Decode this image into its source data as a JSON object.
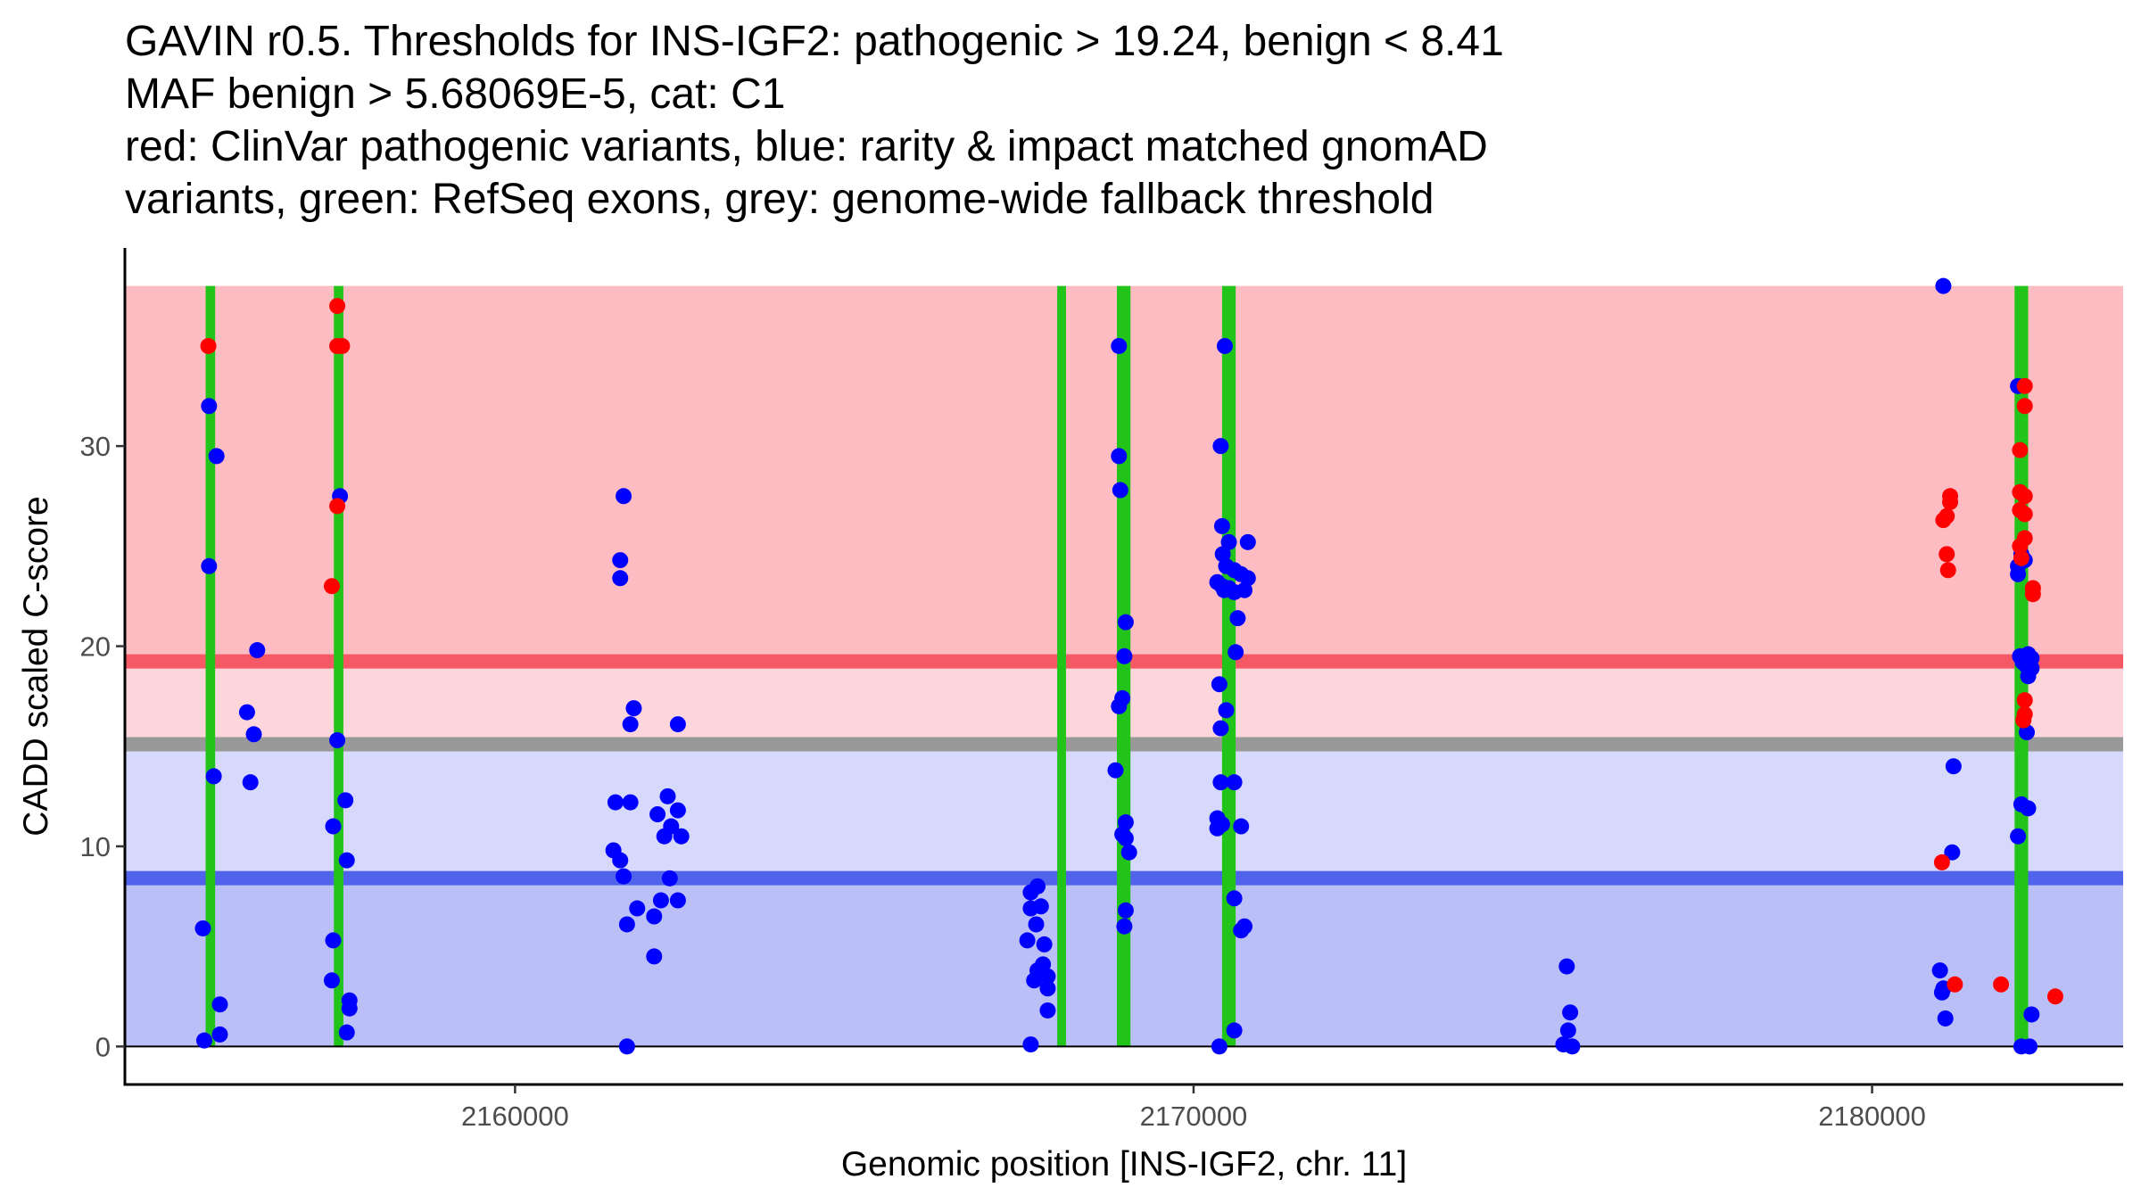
{
  "chart_data": {
    "type": "scatter",
    "title_lines": [
      "GAVIN r0.5. Thresholds for INS-IGF2: pathogenic > 19.24, benign < 8.41",
      "MAF benign > 5.68069E-5, cat: C1",
      "red: ClinVar pathogenic variants, blue: rarity & impact matched gnomAD",
      "variants, green: RefSeq exons, grey: genome-wide fallback threshold"
    ],
    "xlabel": "Genomic position [INS-IGF2, chr. 11]",
    "ylabel": "CADD scaled C-score",
    "xlim": [
      2154250,
      2183700
    ],
    "ylim": [
      -1.9,
      39.9
    ],
    "x_ticks": [
      2160000,
      2170000,
      2180000
    ],
    "x_tick_labels": [
      "2160000",
      "2170000",
      "2180000"
    ],
    "y_ticks": [
      0,
      10,
      20,
      30
    ],
    "y_tick_labels": [
      "0",
      "10",
      "20",
      "30"
    ],
    "colors": {
      "pathogenic_region": "#FDBCC2",
      "grey_zone_upper": "#FDD6DC",
      "grey_zone_lower": "#D6D9FB",
      "benign_region": "#BBBFF8",
      "pathogenic_threshold": "#F65966",
      "benign_threshold": "#5163EA",
      "fallback_threshold": "#999999",
      "exon": "#22C41A",
      "pathogenic_point": "#FF0000",
      "benign_point": "#0000FF"
    },
    "thresholds": {
      "pathogenic": 19.24,
      "benign": 8.41,
      "fallback": 15.1,
      "band_top": 38,
      "band_bottom": 0
    },
    "exons": [
      {
        "start": 2155440,
        "end": 2155580
      },
      {
        "start": 2157330,
        "end": 2157470
      },
      {
        "start": 2167990,
        "end": 2168120
      },
      {
        "start": 2168870,
        "end": 2169070
      },
      {
        "start": 2170420,
        "end": 2170620
      },
      {
        "start": 2182100,
        "end": 2182300
      }
    ],
    "series": [
      {
        "name": "ClinVar pathogenic variants",
        "color": "#FF0000",
        "points": [
          [
            2155480,
            35.0
          ],
          [
            2157380,
            37.0
          ],
          [
            2157380,
            35.0
          ],
          [
            2157450,
            35.0
          ],
          [
            2157380,
            27.0
          ],
          [
            2157300,
            23.0
          ],
          [
            2181050,
            26.3
          ],
          [
            2181150,
            27.5
          ],
          [
            2181150,
            27.2
          ],
          [
            2181100,
            26.5
          ],
          [
            2181100,
            24.6
          ],
          [
            2181120,
            23.8
          ],
          [
            2181030,
            9.2
          ],
          [
            2181220,
            3.1
          ],
          [
            2181900,
            3.1
          ],
          [
            2182700,
            2.5
          ],
          [
            2182250,
            33.0
          ],
          [
            2182250,
            32.0
          ],
          [
            2182180,
            29.8
          ],
          [
            2182180,
            27.7
          ],
          [
            2182250,
            27.5
          ],
          [
            2182180,
            26.8
          ],
          [
            2182250,
            26.6
          ],
          [
            2182250,
            25.4
          ],
          [
            2182180,
            25.0
          ],
          [
            2182200,
            24.4
          ],
          [
            2182370,
            22.9
          ],
          [
            2182370,
            22.6
          ],
          [
            2182250,
            17.3
          ],
          [
            2182250,
            16.6
          ],
          [
            2182230,
            16.3
          ]
        ]
      },
      {
        "name": "rarity & impact matched gnomAD variants",
        "color": "#0000FF",
        "points": [
          [
            2155490,
            32.0
          ],
          [
            2155600,
            29.5
          ],
          [
            2155490,
            24.0
          ],
          [
            2156200,
            19.8
          ],
          [
            2156050,
            16.7
          ],
          [
            2156150,
            15.6
          ],
          [
            2156100,
            13.2
          ],
          [
            2155560,
            13.5
          ],
          [
            2155400,
            5.9
          ],
          [
            2155650,
            2.1
          ],
          [
            2155650,
            0.6
          ],
          [
            2155420,
            0.3
          ],
          [
            2157420,
            27.5
          ],
          [
            2157380,
            15.3
          ],
          [
            2157500,
            12.3
          ],
          [
            2157320,
            11.0
          ],
          [
            2157520,
            9.3
          ],
          [
            2157320,
            5.3
          ],
          [
            2157300,
            3.3
          ],
          [
            2157560,
            2.3
          ],
          [
            2157560,
            1.9
          ],
          [
            2157520,
            0.7
          ],
          [
            2161600,
            27.5
          ],
          [
            2161550,
            24.3
          ],
          [
            2161550,
            23.4
          ],
          [
            2161750,
            16.9
          ],
          [
            2161700,
            16.1
          ],
          [
            2162400,
            16.1
          ],
          [
            2161480,
            12.2
          ],
          [
            2161700,
            12.2
          ],
          [
            2162250,
            12.5
          ],
          [
            2162400,
            11.8
          ],
          [
            2162100,
            11.6
          ],
          [
            2162200,
            10.5
          ],
          [
            2162450,
            10.5
          ],
          [
            2162300,
            11.0
          ],
          [
            2161450,
            9.8
          ],
          [
            2161550,
            9.3
          ],
          [
            2161600,
            8.5
          ],
          [
            2162280,
            8.4
          ],
          [
            2162150,
            7.3
          ],
          [
            2162400,
            7.3
          ],
          [
            2161800,
            6.9
          ],
          [
            2162050,
            6.5
          ],
          [
            2161650,
            6.1
          ],
          [
            2162050,
            4.5
          ],
          [
            2161650,
            0.0
          ],
          [
            2167700,
            8.0
          ],
          [
            2167600,
            7.7
          ],
          [
            2167600,
            6.9
          ],
          [
            2167750,
            7.0
          ],
          [
            2167680,
            6.1
          ],
          [
            2167550,
            5.3
          ],
          [
            2167800,
            5.1
          ],
          [
            2167780,
            4.1
          ],
          [
            2167700,
            3.8
          ],
          [
            2167850,
            3.5
          ],
          [
            2167650,
            3.3
          ],
          [
            2167850,
            2.9
          ],
          [
            2167850,
            1.8
          ],
          [
            2167600,
            0.1
          ],
          [
            2168900,
            35.0
          ],
          [
            2168900,
            29.5
          ],
          [
            2168920,
            27.8
          ],
          [
            2169000,
            21.2
          ],
          [
            2168980,
            19.5
          ],
          [
            2168950,
            17.4
          ],
          [
            2168900,
            17.0
          ],
          [
            2168850,
            13.8
          ],
          [
            2169000,
            11.2
          ],
          [
            2168950,
            10.6
          ],
          [
            2169000,
            10.4
          ],
          [
            2169050,
            9.7
          ],
          [
            2169000,
            6.8
          ],
          [
            2168980,
            6.0
          ],
          [
            2170460,
            35.0
          ],
          [
            2170400,
            30.0
          ],
          [
            2170420,
            26.0
          ],
          [
            2170520,
            25.2
          ],
          [
            2170800,
            25.2
          ],
          [
            2170430,
            24.6
          ],
          [
            2170480,
            24.0
          ],
          [
            2170600,
            23.8
          ],
          [
            2170700,
            23.6
          ],
          [
            2170800,
            23.4
          ],
          [
            2170350,
            23.2
          ],
          [
            2170420,
            23.0
          ],
          [
            2170520,
            22.9
          ],
          [
            2170450,
            22.8
          ],
          [
            2170600,
            22.7
          ],
          [
            2170750,
            22.8
          ],
          [
            2170650,
            21.4
          ],
          [
            2170620,
            19.7
          ],
          [
            2170380,
            18.1
          ],
          [
            2170480,
            16.8
          ],
          [
            2170400,
            15.9
          ],
          [
            2170400,
            13.2
          ],
          [
            2170600,
            13.2
          ],
          [
            2170350,
            11.4
          ],
          [
            2170420,
            11.1
          ],
          [
            2170350,
            10.9
          ],
          [
            2170700,
            11.0
          ],
          [
            2170600,
            7.4
          ],
          [
            2170750,
            6.0
          ],
          [
            2170700,
            5.8
          ],
          [
            2170600,
            0.8
          ],
          [
            2170380,
            0.0
          ],
          [
            2175500,
            4.0
          ],
          [
            2175550,
            1.7
          ],
          [
            2175520,
            0.8
          ],
          [
            2175450,
            0.1
          ],
          [
            2175580,
            0.0
          ],
          [
            2181050,
            38.0
          ],
          [
            2181200,
            14.0
          ],
          [
            2181180,
            9.7
          ],
          [
            2181000,
            3.8
          ],
          [
            2181050,
            2.9
          ],
          [
            2181030,
            2.7
          ],
          [
            2181080,
            1.4
          ],
          [
            2182150,
            33.0
          ],
          [
            2182200,
            24.6
          ],
          [
            2182250,
            24.3
          ],
          [
            2182150,
            24.0
          ],
          [
            2182150,
            23.6
          ],
          [
            2182180,
            19.5
          ],
          [
            2182300,
            19.6
          ],
          [
            2182350,
            19.4
          ],
          [
            2182220,
            19.2
          ],
          [
            2182280,
            19.0
          ],
          [
            2182350,
            18.9
          ],
          [
            2182300,
            18.5
          ],
          [
            2182280,
            15.7
          ],
          [
            2182200,
            12.1
          ],
          [
            2182300,
            11.9
          ],
          [
            2182150,
            10.5
          ],
          [
            2182350,
            1.6
          ],
          [
            2182200,
            0.0
          ],
          [
            2182320,
            0.0
          ]
        ]
      }
    ]
  }
}
